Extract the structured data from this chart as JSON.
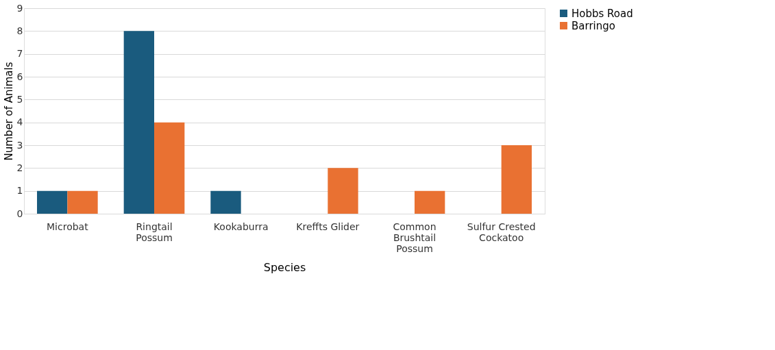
{
  "chart_data": {
    "type": "bar",
    "xlabel": "Species",
    "ylabel": "Number of Animals",
    "categories": [
      "Microbat",
      "Ringtail Possum",
      "Kookaburra",
      "Kreffts Glider",
      "Common Brushtail Possum",
      "Sulfur Crested Cockatoo"
    ],
    "series": [
      {
        "name": "Hobbs Road",
        "color": "#1a5b7e",
        "values": [
          1,
          8,
          1,
          0,
          0,
          0
        ]
      },
      {
        "name": "Barringo",
        "color": "#e97132",
        "values": [
          1,
          4,
          0,
          2,
          1,
          3
        ]
      }
    ],
    "ylim": [
      0,
      9
    ],
    "yticks": [
      0,
      1,
      2,
      3,
      4,
      5,
      6,
      7,
      8,
      9
    ],
    "grid": "y",
    "legend": "right"
  }
}
